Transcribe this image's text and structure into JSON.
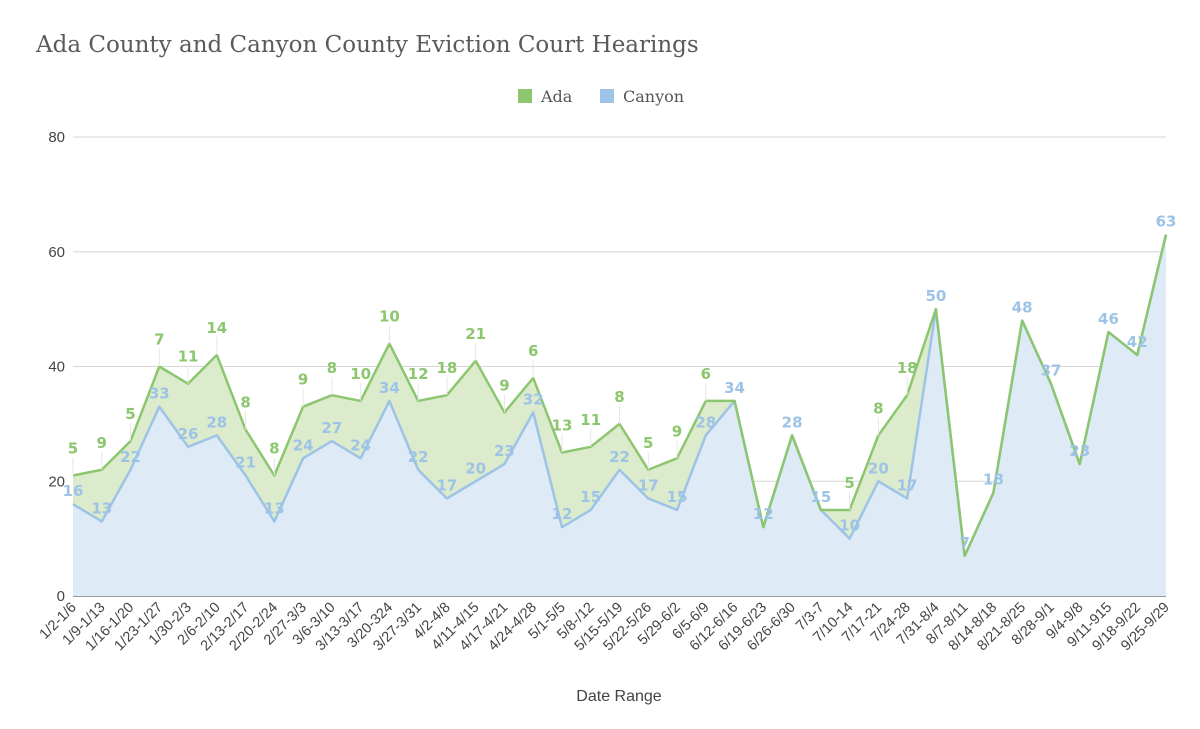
{
  "chart_data": {
    "type": "area",
    "title": "Ada County and Canyon County Eviction Court Hearings",
    "xlabel": "Date Range",
    "ylabel": "",
    "ylim": [
      0,
      80
    ],
    "yticks": [
      0,
      20,
      40,
      60,
      80
    ],
    "grid": true,
    "legend_position": "top-center",
    "stacked": true,
    "categories": [
      "1/2-1/6",
      "1/9-1/13",
      "1/16-1/20",
      "1/23-1/27",
      "1/30-2/3",
      "2/6-2/10",
      "2/13-2/17",
      "2/20-2/24",
      "2/27-3/3",
      "3/6-3/10",
      "3/13-3/17",
      "3/20-324",
      "3/27-3/31",
      "4/2-4/8",
      "4/11-4/15",
      "4/17-4/21",
      "4/24-4/28",
      "5/1-5/5",
      "5/8-/12",
      "5/15-5/19",
      "5/22-5/26",
      "5/29-6/2",
      "6/5-6/9",
      "6/12-6/16",
      "6/19-6/23",
      "6/26-6/30",
      "7/3-7",
      "7/10-14",
      "7/17-21",
      "7/24-28",
      "7/31-8/4",
      "8/7-8/11",
      "8/14-8/18",
      "8/21-8/25",
      "8/28-9/1",
      "9/4-9/8",
      "9/11-915",
      "9/18-9/22",
      "9/25-9/29"
    ],
    "series": [
      {
        "name": "Ada",
        "color": "#8cc66f",
        "fill": "#dcebcc",
        "values": [
          5,
          9,
          5,
          7,
          11,
          14,
          8,
          8,
          9,
          8,
          10,
          10,
          12,
          18,
          21,
          9,
          6,
          13,
          11,
          8,
          5,
          9,
          6,
          0,
          0,
          0,
          0,
          5,
          8,
          18,
          0,
          0,
          0,
          0,
          0,
          0,
          0,
          0,
          0
        ],
        "labels": [
          "5",
          "9",
          "5",
          "7",
          "11",
          "14",
          "8",
          "8",
          "9",
          "8",
          "10",
          "10",
          "12",
          "18",
          "21",
          "9",
          "6",
          "13",
          "11",
          "8",
          "5",
          "9",
          "6",
          "",
          "",
          "",
          "",
          "5",
          "8",
          "18",
          "",
          "",
          "",
          "",
          "",
          "",
          "",
          "",
          ""
        ]
      },
      {
        "name": "Canyon",
        "color": "#9dc3e6",
        "fill": "#deeaf6",
        "values": [
          16,
          13,
          22,
          33,
          26,
          28,
          21,
          13,
          24,
          27,
          24,
          34,
          22,
          17,
          20,
          23,
          32,
          12,
          15,
          22,
          17,
          15,
          28,
          34,
          12,
          28,
          15,
          10,
          20,
          17,
          50,
          7,
          18,
          48,
          37,
          23,
          46,
          42,
          63
        ],
        "labels": [
          "16",
          "13",
          "22",
          "33",
          "26",
          "28",
          "21",
          "13",
          "24",
          "27",
          "24",
          "34",
          "22",
          "17",
          "20",
          "23",
          "32",
          "12",
          "15",
          "22",
          "17",
          "15",
          "28",
          "34",
          "12",
          "28",
          "15",
          "10",
          "20",
          "17",
          "50",
          "7",
          "18",
          "48",
          "37",
          "23",
          "46",
          "42",
          "63"
        ]
      }
    ]
  }
}
